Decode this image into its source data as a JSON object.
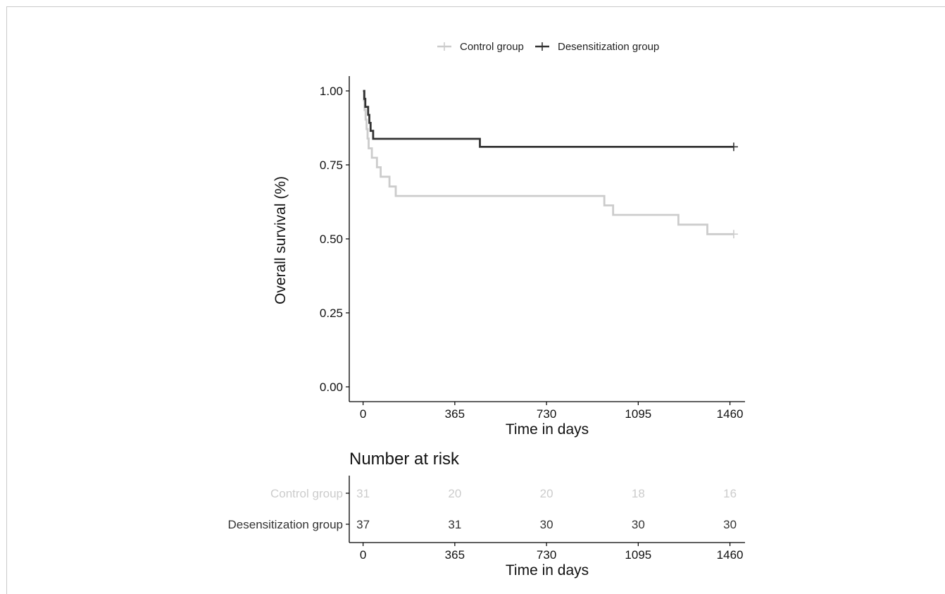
{
  "chart_data": [
    {
      "type": "line",
      "subtype": "kaplan-meier-step",
      "ylabel": "Overall survival (%)",
      "xlabel": "Time in days",
      "xlim": [
        -55,
        1520
      ],
      "ylim": [
        -0.05,
        1.05
      ],
      "x_ticks": [
        0,
        365,
        730,
        1095,
        1460
      ],
      "x_tick_labels": [
        "0",
        "365",
        "730",
        "1095",
        "1460"
      ],
      "y_ticks": [
        0,
        0.25,
        0.5,
        0.75,
        1.0
      ],
      "y_tick_labels": [
        "0.00",
        "0.25",
        "0.50",
        "0.75",
        "1.00"
      ],
      "grid": false,
      "legend_position": "top",
      "series": [
        {
          "name": "Control group",
          "color": "#cccccc",
          "points": [
            [
              0,
              1.0
            ],
            [
              3,
              0.968
            ],
            [
              6,
              0.935
            ],
            [
              10,
              0.903
            ],
            [
              14,
              0.871
            ],
            [
              18,
              0.839
            ],
            [
              22,
              0.806
            ],
            [
              35,
              0.774
            ],
            [
              55,
              0.742
            ],
            [
              70,
              0.71
            ],
            [
              105,
              0.677
            ],
            [
              130,
              0.645
            ],
            [
              960,
              0.613
            ],
            [
              995,
              0.581
            ],
            [
              1255,
              0.548
            ],
            [
              1370,
              0.516
            ],
            [
              1475,
              0.516
            ]
          ],
          "censored": [
            [
              1475,
              0.516
            ]
          ]
        },
        {
          "name": "Desensitization group",
          "color": "#333333",
          "points": [
            [
              0,
              1.0
            ],
            [
              5,
              0.973
            ],
            [
              9,
              0.946
            ],
            [
              20,
              0.919
            ],
            [
              25,
              0.892
            ],
            [
              30,
              0.865
            ],
            [
              40,
              0.838
            ],
            [
              460,
              0.838
            ],
            [
              465,
              0.811
            ],
            [
              1475,
              0.811
            ]
          ],
          "censored": [
            [
              1475,
              0.811
            ]
          ]
        }
      ]
    },
    {
      "type": "table",
      "title": "Number at risk",
      "xlabel": "Time in days",
      "x_ticks": [
        0,
        365,
        730,
        1095,
        1460
      ],
      "x_tick_labels": [
        "0",
        "365",
        "730",
        "1095",
        "1460"
      ],
      "rows": [
        {
          "label": "Control group",
          "color": "#cccccc",
          "values": [
            31,
            20,
            20,
            18,
            16
          ]
        },
        {
          "label": "Desensitization group",
          "color": "#333333",
          "values": [
            37,
            31,
            30,
            30,
            30
          ]
        }
      ]
    }
  ]
}
